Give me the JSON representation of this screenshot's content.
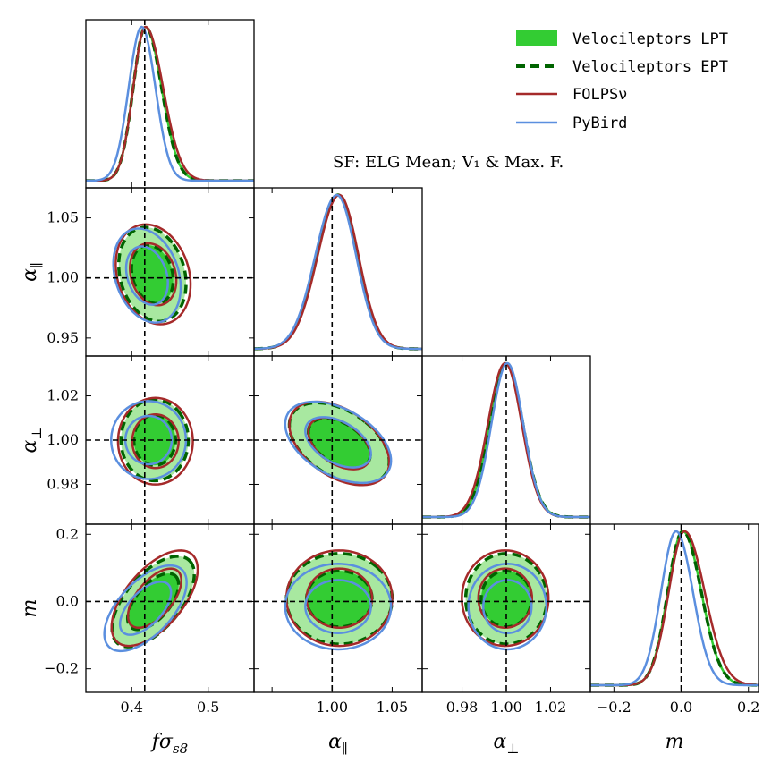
{
  "figure": {
    "annotation": "SF: ELG Mean; V₁ & Max. F."
  },
  "legend": {
    "placement": "top-right",
    "items": [
      {
        "label": "Velocileptors LPT",
        "style": "filled",
        "color": "#33cc33"
      },
      {
        "label": "Velocileptors EPT",
        "style": "dashed",
        "color": "#006400"
      },
      {
        "label": "FOLPSν",
        "style": "solid",
        "color": "#a52a2a"
      },
      {
        "label": "PyBird",
        "style": "solid",
        "color": "#5b8fdf"
      }
    ]
  },
  "chart_data": {
    "type": "corner",
    "title": "",
    "parameters": [
      {
        "name": "fσ_s8",
        "label": "fσs8",
        "range": [
          0.34,
          0.56
        ],
        "ticks": [
          0.4,
          0.5
        ],
        "tick_labels": [
          "0.4",
          "0.5"
        ],
        "truth": 0.417
      },
      {
        "name": "α_par",
        "label": "α∥",
        "range": [
          0.935,
          1.075
        ],
        "ticks": [
          0.95,
          1.0,
          1.05
        ],
        "tick_labels": [
          "0.95",
          "1.00",
          "1.05"
        ],
        "x_tick_labels": [
          "",
          "1.00",
          "1.05"
        ],
        "truth": 1.0
      },
      {
        "name": "α_perp",
        "label": "α⊥",
        "range": [
          0.962,
          1.038
        ],
        "ticks": [
          0.98,
          1.0,
          1.02
        ],
        "tick_labels": [
          "0.98",
          "1.00",
          "1.02"
        ],
        "truth": 1.0
      },
      {
        "name": "m",
        "label": "m",
        "range": [
          -0.27,
          0.23
        ],
        "ticks": [
          -0.2,
          0.0,
          0.2
        ],
        "tick_labels": [
          "−0.2",
          "0.0",
          "0.2"
        ],
        "truth": 0.0
      }
    ],
    "series_colors": {
      "lpt_fill_outer": "#a8e8a0",
      "lpt_fill_inner": "#33cc33",
      "ept": "#006400",
      "folps": "#a52a2a",
      "pybird": "#5b8fdf"
    },
    "marginals": [
      {
        "param": 0,
        "series": [
          {
            "name": "Velocileptors LPT",
            "mean": 0.418,
            "sigma_left": 0.016,
            "sigma_right": 0.021
          },
          {
            "name": "Velocileptors EPT",
            "mean": 0.418,
            "sigma_left": 0.016,
            "sigma_right": 0.021
          },
          {
            "name": "FOLPSν",
            "mean": 0.418,
            "sigma_left": 0.016,
            "sigma_right": 0.023
          },
          {
            "name": "PyBird",
            "mean": 0.413,
            "sigma_left": 0.017,
            "sigma_right": 0.018
          }
        ]
      },
      {
        "param": 1,
        "series": [
          {
            "name": "Velocileptors LPT",
            "mean": 1.005,
            "sigma_left": 0.018,
            "sigma_right": 0.016
          },
          {
            "name": "Velocileptors EPT",
            "mean": 1.005,
            "sigma_left": 0.018,
            "sigma_right": 0.016
          },
          {
            "name": "FOLPSν",
            "mean": 1.006,
            "sigma_left": 0.018,
            "sigma_right": 0.016
          },
          {
            "name": "PyBird",
            "mean": 1.004,
            "sigma_left": 0.018,
            "sigma_right": 0.016
          }
        ]
      },
      {
        "param": 2,
        "series": [
          {
            "name": "Velocileptors LPT",
            "mean": 1.0,
            "sigma_left": 0.0075,
            "sigma_right": 0.0075
          },
          {
            "name": "Velocileptors EPT",
            "mean": 1.0,
            "sigma_left": 0.0075,
            "sigma_right": 0.0075
          },
          {
            "name": "FOLPSν",
            "mean": 0.9995,
            "sigma_left": 0.0078,
            "sigma_right": 0.0075
          },
          {
            "name": "PyBird",
            "mean": 1.0005,
            "sigma_left": 0.0072,
            "sigma_right": 0.0072
          }
        ]
      },
      {
        "param": 3,
        "series": [
          {
            "name": "Velocileptors LPT",
            "mean": 0.005,
            "sigma_left": 0.045,
            "sigma_right": 0.055
          },
          {
            "name": "Velocileptors EPT",
            "mean": 0.005,
            "sigma_left": 0.045,
            "sigma_right": 0.055
          },
          {
            "name": "FOLPSν",
            "mean": 0.01,
            "sigma_left": 0.047,
            "sigma_right": 0.06
          },
          {
            "name": "PyBird",
            "mean": -0.015,
            "sigma_left": 0.045,
            "sigma_right": 0.05
          }
        ]
      }
    ],
    "contours_2d": [
      {
        "params": [
          0,
          1
        ],
        "series": [
          {
            "name": "Velocileptors LPT",
            "center": [
              0.427,
              1.003
            ],
            "sx": 0.018,
            "sy": 0.016,
            "rho": -0.2
          },
          {
            "name": "Velocileptors EPT",
            "center": [
              0.427,
              1.003
            ],
            "sx": 0.018,
            "sy": 0.016,
            "rho": -0.2
          },
          {
            "name": "FOLPSν",
            "center": [
              0.428,
              1.003
            ],
            "sx": 0.02,
            "sy": 0.017,
            "rho": -0.2
          },
          {
            "name": "PyBird",
            "center": [
              0.42,
              1.002
            ],
            "sx": 0.018,
            "sy": 0.016,
            "rho": -0.25
          }
        ]
      },
      {
        "params": [
          0,
          2
        ],
        "series": [
          {
            "name": "Velocileptors LPT",
            "center": [
              0.43,
              1.0
            ],
            "sx": 0.018,
            "sy": 0.0075,
            "rho": 0.0
          },
          {
            "name": "Velocileptors EPT",
            "center": [
              0.43,
              1.0
            ],
            "sx": 0.018,
            "sy": 0.0075,
            "rho": 0.0
          },
          {
            "name": "FOLPSν",
            "center": [
              0.431,
              0.9995
            ],
            "sx": 0.02,
            "sy": 0.008,
            "rho": 0.0
          },
          {
            "name": "PyBird",
            "center": [
              0.422,
              1.0
            ],
            "sx": 0.02,
            "sy": 0.0072,
            "rho": 0.0
          }
        ]
      },
      {
        "params": [
          0,
          3
        ],
        "series": [
          {
            "name": "Velocileptors LPT",
            "center": [
              0.428,
              0.0
            ],
            "sx": 0.022,
            "sy": 0.055,
            "rho": 0.6
          },
          {
            "name": "Velocileptors EPT",
            "center": [
              0.428,
              0.0
            ],
            "sx": 0.022,
            "sy": 0.055,
            "rho": 0.6
          },
          {
            "name": "FOLPSν",
            "center": [
              0.43,
              0.01
            ],
            "sx": 0.023,
            "sy": 0.058,
            "rho": 0.6
          },
          {
            "name": "PyBird",
            "center": [
              0.418,
              -0.02
            ],
            "sx": 0.022,
            "sy": 0.052,
            "rho": 0.6
          }
        ]
      },
      {
        "params": [
          1,
          2
        ],
        "series": [
          {
            "name": "Velocileptors LPT",
            "center": [
              1.006,
              0.9985
            ],
            "sx": 0.017,
            "sy": 0.0075,
            "rho": -0.45
          },
          {
            "name": "Velocileptors EPT",
            "center": [
              1.006,
              0.9985
            ],
            "sx": 0.017,
            "sy": 0.0075,
            "rho": -0.45
          },
          {
            "name": "FOLPSν",
            "center": [
              1.006,
              0.9985
            ],
            "sx": 0.017,
            "sy": 0.0077,
            "rho": -0.45
          },
          {
            "name": "PyBird",
            "center": [
              1.005,
              0.999
            ],
            "sx": 0.018,
            "sy": 0.0075,
            "rho": -0.45
          }
        ]
      },
      {
        "params": [
          1,
          3
        ],
        "series": [
          {
            "name": "Velocileptors LPT",
            "center": [
              1.006,
              0.008
            ],
            "sx": 0.018,
            "sy": 0.055,
            "rho": 0.0
          },
          {
            "name": "Velocileptors EPT",
            "center": [
              1.006,
              0.008
            ],
            "sx": 0.018,
            "sy": 0.055,
            "rho": 0.0
          },
          {
            "name": "FOLPSν",
            "center": [
              1.006,
              0.01
            ],
            "sx": 0.018,
            "sy": 0.058,
            "rho": 0.0
          },
          {
            "name": "PyBird",
            "center": [
              1.005,
              -0.015
            ],
            "sx": 0.018,
            "sy": 0.052,
            "rho": 0.0
          }
        ]
      },
      {
        "params": [
          2,
          3
        ],
        "series": [
          {
            "name": "Velocileptors LPT",
            "center": [
              1.0,
              0.008
            ],
            "sx": 0.0075,
            "sy": 0.055,
            "rho": 0.0
          },
          {
            "name": "Velocileptors EPT",
            "center": [
              1.0,
              0.008
            ],
            "sx": 0.0075,
            "sy": 0.055,
            "rho": 0.0
          },
          {
            "name": "FOLPSν",
            "center": [
              0.9995,
              0.01
            ],
            "sx": 0.008,
            "sy": 0.058,
            "rho": 0.0
          },
          {
            "name": "PyBird",
            "center": [
              1.0005,
              -0.015
            ],
            "sx": 0.0072,
            "sy": 0.052,
            "rho": 0.0
          }
        ]
      }
    ]
  }
}
